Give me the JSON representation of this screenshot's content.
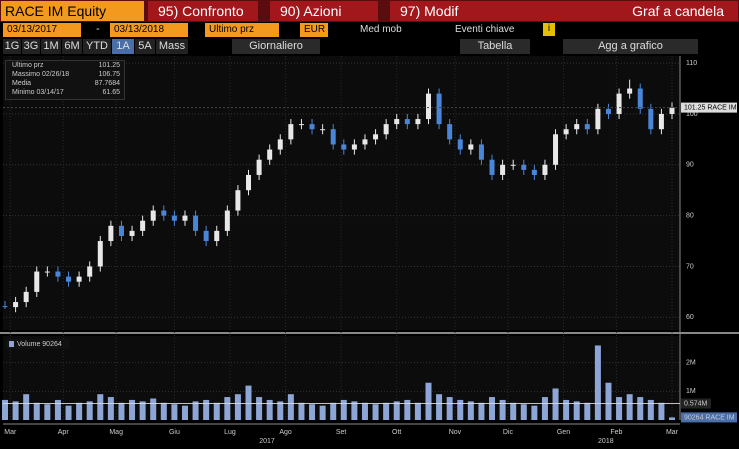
{
  "header": {
    "security": "RACE IM Equity",
    "tabs": [
      "95) Confronto",
      "90) Azioni",
      "97) Modif"
    ],
    "title": "Graf a candela"
  },
  "toolbar": {
    "start_date": "03/13/2017",
    "separator": "-",
    "end_date": "03/13/2018",
    "field": "Ultimo prz",
    "currency": "EUR",
    "moving_avg": "Med mob",
    "events": "Eventi chiave",
    "info": "i",
    "periods": [
      "1G",
      "3G",
      "1M",
      "6M",
      "YTD",
      "1A",
      "5A",
      "Mass"
    ],
    "active_period": 5,
    "frequency": "Giornaliero",
    "table": "Tabella",
    "add": "Agg a grafico"
  },
  "chart_data": {
    "type": "candlestick",
    "legend": [
      {
        "label": "Ultimo prz",
        "value": "101.25"
      },
      {
        "label": "Massimo 02/26/18",
        "value": "106.75"
      },
      {
        "label": "Media",
        "value": "87.7684"
      },
      {
        "label": "Minimo 03/14/17",
        "value": "61.65"
      }
    ],
    "last_price_tag": "101.25 RACE IM",
    "last_price": 101.25,
    "xlim": [
      0,
      252
    ],
    "xticks": [
      {
        "value": 2,
        "label": "Mar"
      },
      {
        "value": 22,
        "label": "Apr"
      },
      {
        "value": 42,
        "label": "Mag"
      },
      {
        "value": 64,
        "label": "Giu"
      },
      {
        "value": 85,
        "label": "Lug"
      },
      {
        "value": 106,
        "label": "Ago"
      },
      {
        "value": 127,
        "label": "Set"
      },
      {
        "value": 148,
        "label": "Ott"
      },
      {
        "value": 170,
        "label": "Nov"
      },
      {
        "value": 190,
        "label": "Dic"
      },
      {
        "value": 211,
        "label": "Gen"
      },
      {
        "value": 231,
        "label": "Feb"
      },
      {
        "value": 252,
        "label": "Mar"
      }
    ],
    "years": [
      {
        "value": 99,
        "label": "2017"
      },
      {
        "value": 227,
        "label": "2018"
      }
    ],
    "ylim": [
      57.5,
      111.4
    ],
    "yticks": [
      60,
      70,
      80,
      90,
      100,
      110
    ],
    "x": [
      0,
      4,
      8,
      12,
      16,
      20,
      24,
      28,
      32,
      36,
      40,
      44,
      48,
      52,
      56,
      60,
      64,
      68,
      72,
      76,
      80,
      84,
      88,
      92,
      96,
      100,
      104,
      108,
      112,
      116,
      120,
      124,
      128,
      132,
      136,
      140,
      144,
      148,
      152,
      156,
      160,
      164,
      168,
      172,
      176,
      180,
      184,
      188,
      192,
      196,
      200,
      204,
      208,
      212,
      216,
      220,
      224,
      228,
      232,
      236,
      240,
      244,
      248,
      252
    ],
    "open": [
      62.2,
      62,
      63,
      65,
      69,
      69,
      68,
      67,
      68,
      70,
      75,
      78,
      76,
      77,
      79,
      81,
      80,
      79,
      80,
      77,
      75,
      77,
      81,
      85,
      88,
      91,
      93,
      95,
      98,
      98,
      97,
      97,
      94,
      93,
      94,
      95,
      96,
      98,
      99,
      98,
      99,
      104,
      98,
      95,
      93,
      94,
      91,
      88,
      90,
      90,
      89,
      88,
      90,
      96,
      97,
      98,
      97,
      101,
      100,
      104,
      105,
      101,
      97,
      100
    ],
    "high": [
      63.2,
      64,
      66,
      70,
      70,
      70,
      69,
      69,
      71,
      76,
      79,
      79,
      78,
      80,
      82,
      82,
      81,
      81,
      81,
      78,
      78,
      82,
      86,
      89,
      92,
      94,
      96,
      99,
      99,
      99,
      98,
      98,
      95,
      95,
      96,
      97,
      99,
      100,
      100,
      100,
      105,
      105,
      99,
      96,
      95,
      95,
      92,
      91,
      91,
      91,
      90,
      91,
      97,
      98,
      99,
      99,
      102,
      102,
      105,
      106.75,
      106,
      102,
      101,
      102.25
    ],
    "low": [
      61.65,
      61,
      62,
      64,
      68,
      67,
      66,
      66,
      67,
      69,
      74,
      75,
      75,
      76,
      78,
      79,
      78,
      78,
      76,
      74,
      74,
      76,
      80,
      84,
      87,
      90,
      92,
      94,
      97,
      96,
      96,
      93,
      92,
      92,
      93,
      94,
      95,
      97,
      97,
      97,
      98,
      97,
      94,
      92,
      92,
      90,
      87,
      87,
      89,
      88,
      87,
      87,
      89,
      95,
      96,
      96,
      96,
      99,
      99,
      103,
      100,
      96,
      96,
      99
    ],
    "close": [
      62,
      63,
      65,
      69,
      69,
      68,
      67,
      68,
      70,
      75,
      78,
      76,
      77,
      79,
      81,
      80,
      79,
      80,
      77,
      75,
      77,
      81,
      85,
      88,
      91,
      93,
      95,
      98,
      98,
      97,
      97,
      94,
      93,
      94,
      95,
      96,
      98,
      99,
      98,
      99,
      104,
      98,
      95,
      93,
      94,
      91,
      88,
      90,
      90,
      89,
      88,
      90,
      96,
      97,
      98,
      97,
      101,
      100,
      104,
      105,
      101,
      97,
      100,
      101.25
    ],
    "up_color": "#e8e8e8",
    "down_color": "#4a86d8",
    "volume": {
      "legend": "Volume 90264",
      "ylim": [
        0,
        2930000
      ],
      "yticks": [
        {
          "value": 1000000,
          "label": "1M"
        },
        {
          "value": 2000000,
          "label": "2M"
        }
      ],
      "color": "#8ea6d6",
      "values": [
        700000,
        650000,
        900000,
        600000,
        550000,
        700000,
        500000,
        600000,
        650000,
        900000,
        800000,
        600000,
        700000,
        650000,
        750000,
        600000,
        550000,
        500000,
        650000,
        700000,
        600000,
        800000,
        900000,
        1200000,
        800000,
        700000,
        650000,
        900000,
        600000,
        550000,
        500000,
        600000,
        700000,
        650000,
        600000,
        550000,
        600000,
        650000,
        700000,
        600000,
        1300000,
        900000,
        800000,
        700000,
        650000,
        600000,
        800000,
        700000,
        600000,
        550000,
        500000,
        800000,
        1100000,
        700000,
        650000,
        600000,
        2600000,
        1300000,
        800000,
        900000,
        800000,
        700000,
        600000,
        90264
      ],
      "ma": {
        "value": 574000,
        "label": "0.574M"
      },
      "last_tag": "90264 RACE IM"
    }
  }
}
